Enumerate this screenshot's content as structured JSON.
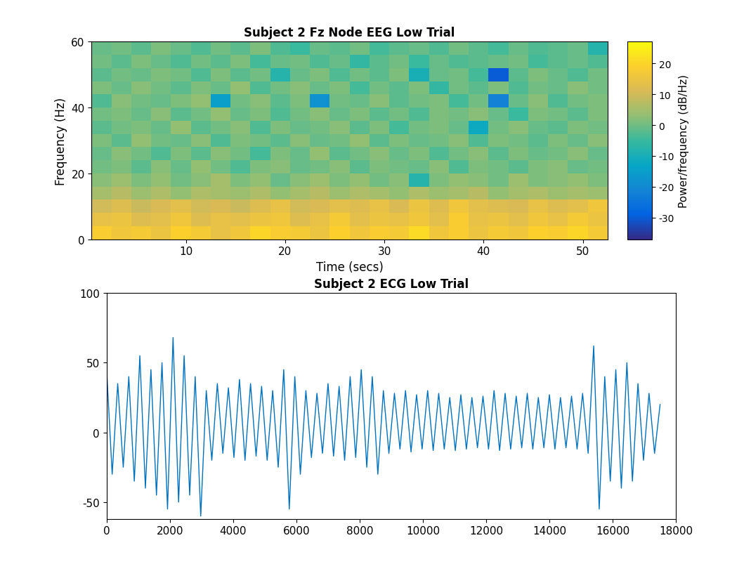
{
  "chart_data": [
    {
      "type": "heatmap",
      "title": "Subject 2 Fz Node EEG Low Trial",
      "x_label": "Time (secs)",
      "y_label": "Frequency (Hz)",
      "x": [
        0.5,
        2.5,
        4.5,
        6.5,
        8.5,
        10.5,
        12.5,
        14.5,
        16.5,
        18.5,
        20.5,
        22.5,
        24.5,
        26.5,
        28.5,
        30.5,
        32.5,
        34.5,
        36.5,
        38.5,
        40.5,
        42.5,
        44.5,
        46.5,
        48.5,
        50.5,
        52.5
      ],
      "y": [
        0,
        4,
        8,
        12,
        16,
        20,
        24,
        28,
        32,
        36,
        40,
        44,
        48,
        52,
        56,
        60
      ],
      "cells": [
        [
          18,
          16,
          17,
          15,
          19,
          17,
          14,
          16,
          20,
          18,
          17,
          15,
          19,
          16,
          18,
          17,
          21,
          16,
          18,
          15,
          17,
          16,
          19,
          18,
          20,
          17
        ],
        [
          14,
          15,
          12,
          13,
          16,
          12,
          14,
          13,
          15,
          16,
          12,
          14,
          17,
          13,
          15,
          14,
          16,
          13,
          18,
          14,
          15,
          13,
          16,
          14,
          17,
          15
        ],
        [
          10,
          12,
          9,
          11,
          13,
          10,
          11,
          9,
          12,
          14,
          10,
          11,
          13,
          12,
          14,
          11,
          15,
          12,
          16,
          13,
          12,
          11,
          14,
          12,
          13,
          16
        ],
        [
          5,
          7,
          4,
          6,
          3,
          6,
          5,
          4,
          6,
          3,
          5,
          7,
          4,
          6,
          5,
          3,
          6,
          4,
          5,
          7,
          3,
          5,
          6,
          4,
          5,
          4
        ],
        [
          2,
          4,
          1,
          3,
          0,
          2,
          5,
          1,
          3,
          -1,
          2,
          4,
          1,
          3,
          0,
          2,
          -8,
          1,
          3,
          2,
          0,
          4,
          1,
          2,
          3,
          1
        ],
        [
          0,
          1,
          -2,
          2,
          -1,
          3,
          0,
          -3,
          1,
          2,
          -1,
          0,
          2,
          -2,
          1,
          0,
          -1,
          2,
          -3,
          1,
          0,
          -2,
          1,
          2,
          -1,
          0
        ],
        [
          -1,
          2,
          0,
          -3,
          1,
          -2,
          2,
          0,
          -4,
          1,
          -1,
          3,
          -2,
          0,
          2,
          -1,
          1,
          -3,
          0,
          2,
          -2,
          1,
          -1,
          0,
          2,
          -1
        ],
        [
          1,
          -2,
          3,
          0,
          -1,
          2,
          -3,
          1,
          0,
          -2,
          2,
          -1,
          0,
          3,
          -2,
          1,
          -1,
          0,
          2,
          -3,
          1,
          0,
          -2,
          1,
          -1,
          2
        ],
        [
          -2,
          0,
          1,
          -1,
          3,
          -2,
          0,
          2,
          -3,
          1,
          -1,
          0,
          2,
          -2,
          1,
          -4,
          0,
          1,
          -1,
          -12,
          0,
          2,
          -1,
          -2,
          1,
          0
        ],
        [
          0,
          1,
          -1,
          2,
          -2,
          0,
          3,
          -1,
          1,
          -3,
          0,
          2,
          -1,
          1,
          -2,
          0,
          -3,
          1,
          0,
          2,
          -1,
          -5,
          1,
          0,
          -2,
          1
        ],
        [
          -3,
          2,
          0,
          -1,
          1,
          3,
          -15,
          0,
          2,
          -2,
          1,
          -18,
          0,
          -1,
          2,
          -2,
          0,
          1,
          -4,
          0,
          -22,
          -1,
          2,
          -3,
          0,
          1
        ],
        [
          1,
          -1,
          2,
          0,
          -2,
          1,
          -1,
          3,
          -3,
          0,
          2,
          -1,
          1,
          -4,
          0,
          -2,
          1,
          -6,
          0,
          -2,
          1,
          -3,
          0,
          -1,
          2,
          0
        ],
        [
          -2,
          0,
          -1,
          1,
          0,
          -3,
          1,
          -2,
          0,
          -8,
          -1,
          1,
          -3,
          0,
          -2,
          1,
          -10,
          -1,
          0,
          -4,
          -30,
          -2,
          1,
          -1,
          -3,
          0
        ],
        [
          0,
          -2,
          1,
          -1,
          -3,
          0,
          -2,
          1,
          -4,
          -1,
          0,
          -3,
          -1,
          -6,
          -2,
          0,
          -5,
          -1,
          -3,
          -2,
          -1,
          0,
          -4,
          -2,
          -1,
          -3
        ],
        [
          -1,
          0,
          -2,
          1,
          -1,
          -3,
          0,
          -2,
          1,
          -3,
          -5,
          -1,
          -2,
          0,
          -4,
          -2,
          -1,
          -3,
          0,
          -2,
          -4,
          -1,
          -3,
          -2,
          -1,
          -8
        ]
      ],
      "xlim": [
        0.5,
        52.5
      ],
      "ylim": [
        0,
        60
      ],
      "xticks": [
        10,
        20,
        30,
        40,
        50
      ],
      "yticks": [
        0,
        20,
        40,
        60
      ],
      "colorbar_label": "Power/frequency (dB/Hz)",
      "colorbar_range": [
        -37,
        27
      ],
      "colorbar_ticks": [
        -30,
        -20,
        -10,
        0,
        10,
        20
      ]
    },
    {
      "type": "line",
      "title": "Subject 2 ECG Low Trial",
      "color": "#0072bd",
      "x": [
        0,
        175,
        350,
        525,
        700,
        875,
        1050,
        1225,
        1400,
        1575,
        1750,
        1925,
        2100,
        2275,
        2450,
        2625,
        2800,
        2975,
        3150,
        3325,
        3500,
        3675,
        3850,
        4025,
        4200,
        4375,
        4550,
        4725,
        4900,
        5075,
        5250,
        5425,
        5600,
        5775,
        5950,
        6125,
        6300,
        6475,
        6650,
        6825,
        7000,
        7175,
        7350,
        7525,
        7700,
        7875,
        8050,
        8225,
        8400,
        8575,
        8750,
        8925,
        9100,
        9275,
        9450,
        9625,
        9800,
        9975,
        10150,
        10325,
        10500,
        10675,
        10850,
        11025,
        11200,
        11375,
        11550,
        11725,
        11900,
        12075,
        12250,
        12425,
        12600,
        12775,
        12950,
        13125,
        13300,
        13475,
        13650,
        13825,
        14000,
        14175,
        14350,
        14525,
        14700,
        14875,
        15050,
        15225,
        15400,
        15575,
        15750,
        15925,
        16100,
        16275,
        16450,
        16625,
        16800,
        16975,
        17150,
        17325,
        17500
      ],
      "values": [
        45,
        -30,
        35,
        -25,
        40,
        -35,
        55,
        -40,
        45,
        -45,
        50,
        -55,
        68,
        -50,
        55,
        -45,
        40,
        -60,
        30,
        -20,
        35,
        -15,
        32,
        -18,
        38,
        -20,
        35,
        -17,
        33,
        -20,
        30,
        -25,
        45,
        -55,
        40,
        -30,
        30,
        -18,
        28,
        -15,
        35,
        -17,
        33,
        -20,
        40,
        -18,
        45,
        -25,
        40,
        -30,
        30,
        -15,
        28,
        -12,
        30,
        -14,
        27,
        -12,
        30,
        -13,
        28,
        -12,
        25,
        -13,
        27,
        -12,
        25,
        -11,
        26,
        -12,
        30,
        -13,
        28,
        -12,
        26,
        -11,
        28,
        -12,
        25,
        -11,
        27,
        -12,
        25,
        -11,
        26,
        -12,
        28,
        -15,
        62,
        -55,
        40,
        -35,
        45,
        -40,
        50,
        -35,
        35,
        -20,
        28,
        -15,
        20
      ],
      "xlim": [
        0,
        18000
      ],
      "ylim": [
        -62,
        100
      ],
      "xticks": [
        0,
        2000,
        4000,
        6000,
        8000,
        10000,
        12000,
        14000,
        16000,
        18000
      ],
      "yticks": [
        -50,
        0,
        50,
        100
      ]
    }
  ]
}
